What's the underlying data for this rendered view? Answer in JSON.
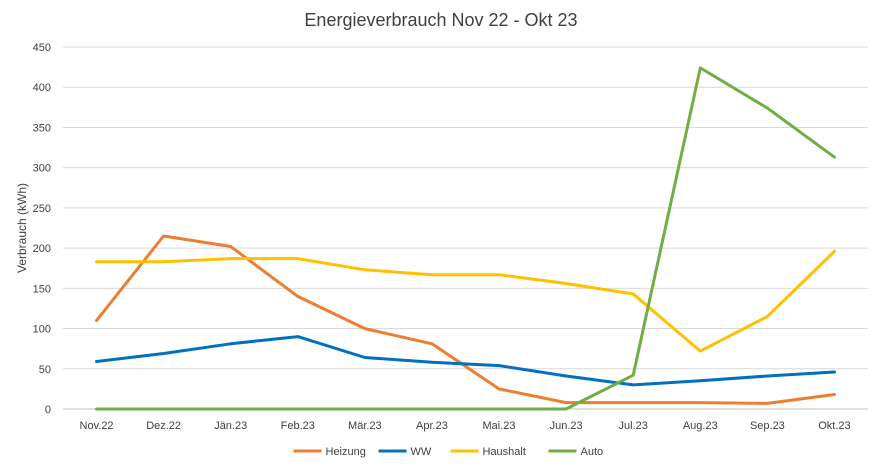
{
  "chart_data": {
    "type": "line",
    "title": "Energieverbrauch Nov 22 - Okt 23",
    "xlabel": "",
    "ylabel": "Verbrauch (kWh)",
    "ylim": [
      0,
      450
    ],
    "yticks": [
      0,
      50,
      100,
      150,
      200,
      250,
      300,
      350,
      400,
      450
    ],
    "grid": true,
    "legend_position": "bottom",
    "categories": [
      "Nov.22",
      "Dez.22",
      "Jän.23",
      "Feb.23",
      "Mär.23",
      "Apr.23",
      "Mai.23",
      "Jun.23",
      "Jul.23",
      "Aug.23",
      "Sep.23",
      "Okt.23"
    ],
    "series": [
      {
        "name": "Heizung",
        "color": "#ED7D31",
        "values": [
          110,
          215,
          202,
          140,
          100,
          81,
          25,
          8,
          8,
          8,
          7,
          18
        ]
      },
      {
        "name": "WW",
        "color": "#0070C0",
        "values": [
          59,
          69,
          81,
          90,
          64,
          58,
          54,
          41,
          30,
          35,
          41,
          46
        ]
      },
      {
        "name": "Haushalt",
        "color": "#FFC000",
        "values": [
          183,
          183,
          187,
          187,
          173,
          167,
          167,
          156,
          143,
          72,
          115,
          196
        ]
      },
      {
        "name": "Auto",
        "color": "#70AD47",
        "values": [
          0,
          0,
          0,
          0,
          0,
          0,
          0,
          0,
          42,
          424,
          374,
          313
        ]
      }
    ]
  }
}
